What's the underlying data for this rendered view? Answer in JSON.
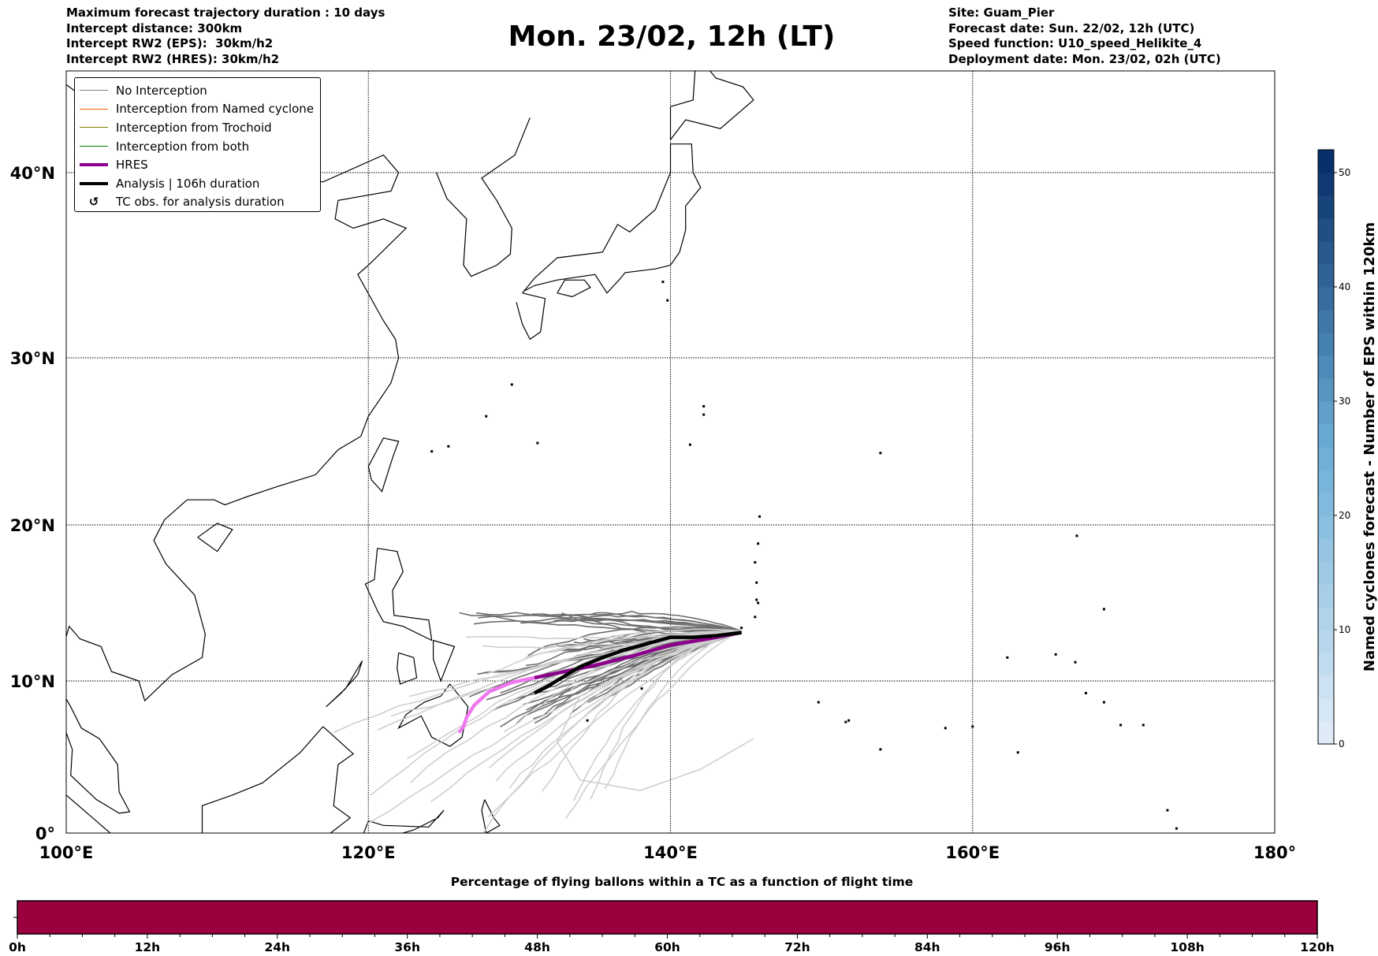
{
  "header": {
    "left": [
      "Maximum forecast trajectory duration : 10 days",
      "Intercept distance: 300km",
      "Intercept RW2 (EPS):  30km/h2",
      "Intercept RW2 (HRES): 30km/h2"
    ],
    "title": "Mon. 23/02, 12h (LT)",
    "right": [
      "Site: Guam_Pier",
      "Forecast date: Sun. 22/02, 12h (UTC)",
      "Speed function: U10_speed_Helikite_4",
      "Deployment date: Mon. 23/02, 02h (UTC)"
    ]
  },
  "legend": [
    {
      "label": "No Interception",
      "color": "#808080",
      "style": "thin"
    },
    {
      "label": "Interception from Named cyclone",
      "color": "#ff5a00",
      "style": "thin"
    },
    {
      "label": "Interception from Trochoid",
      "color": "#808000",
      "style": "thin"
    },
    {
      "label": "Interception from both",
      "color": "#008000",
      "style": "thin"
    },
    {
      "label": "HRES",
      "color": "#8b008b",
      "style": "thick"
    },
    {
      "label": "Analysis | 106h duration",
      "color": "#000000",
      "style": "thick"
    },
    {
      "label": "TC obs. for analysis duration",
      "color": "#000000",
      "style": "marker"
    }
  ],
  "map": {
    "lat_labels": [
      "0°",
      "10°N",
      "20°N",
      "30°N",
      "40°N"
    ],
    "lat_values": [
      0,
      10,
      20,
      30,
      40
    ],
    "lon_labels": [
      "100°E",
      "120°E",
      "140°E",
      "160°E",
      "180°"
    ],
    "lon_values": [
      100,
      120,
      140,
      160,
      180
    ],
    "site": {
      "name": "Guam_Pier",
      "lon": 144.7,
      "lat": 13.4
    }
  },
  "tracks": {
    "hres": [
      [
        144.7,
        13.1
      ],
      [
        142.5,
        12.7
      ],
      [
        140,
        12.3
      ],
      [
        137.5,
        11.6
      ],
      [
        135,
        11
      ],
      [
        133,
        10.6
      ],
      [
        131,
        10.2
      ],
      [
        129.5,
        9.9
      ],
      [
        128,
        9.3
      ],
      [
        127,
        8.4
      ],
      [
        126.5,
        7.6
      ],
      [
        126.3,
        7
      ],
      [
        126,
        6.6
      ]
    ],
    "hres_faded_from_lon": 131.5,
    "analysis": [
      [
        144.7,
        13.1
      ],
      [
        143,
        12.9
      ],
      [
        141.5,
        12.8
      ],
      [
        140,
        12.8
      ],
      [
        138.5,
        12.4
      ],
      [
        137,
        12
      ],
      [
        135.5,
        11.5
      ],
      [
        134,
        10.9
      ],
      [
        132.8,
        10.2
      ],
      [
        131.8,
        9.6
      ],
      [
        131,
        9.2
      ]
    ]
  },
  "colorbar": {
    "label": "Named cyclones forecast - Number of EPS within 120km",
    "ticks": [
      "0",
      "10",
      "20",
      "30",
      "40",
      "50"
    ],
    "min": 0,
    "max": 52
  },
  "flight_bar": {
    "title": "Percentage of flying ballons within a TC as a function of flight time",
    "ticks": [
      "0h",
      "12h",
      "24h",
      "36h",
      "48h",
      "60h",
      "72h",
      "84h",
      "96h",
      "108h",
      "120h"
    ],
    "color": "#9b003e",
    "percent_all_times": 100
  }
}
